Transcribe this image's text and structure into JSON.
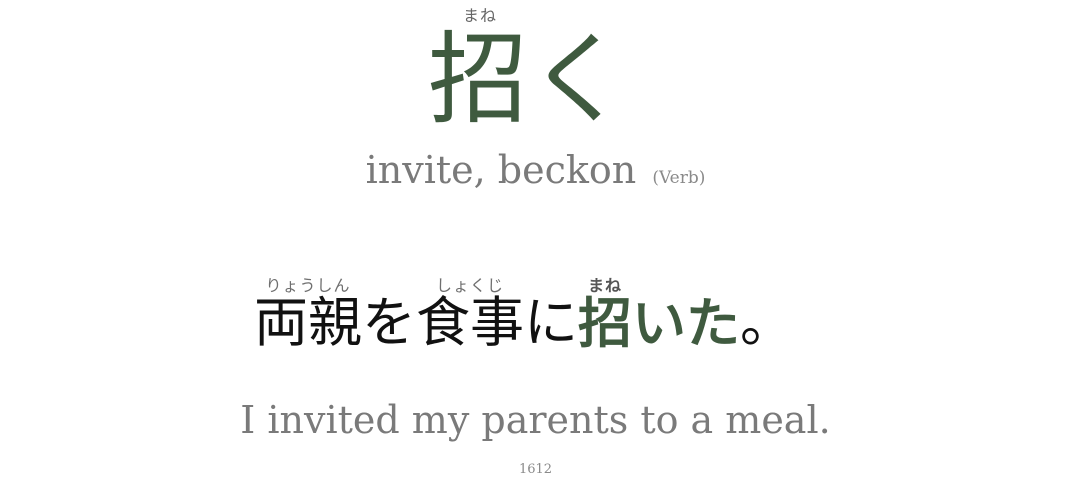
{
  "vocab": {
    "reading": "まね",
    "kanji": "招",
    "okurigana": "く",
    "meaning": "invite, beckon",
    "part_of_speech": "(Verb)"
  },
  "sentence": {
    "segments": [
      {
        "base": "両親",
        "reading": "りょうしん",
        "highlight": false
      },
      {
        "base": "を",
        "reading": "",
        "highlight": false
      },
      {
        "base": "食事",
        "reading": "しょくじ",
        "highlight": false
      },
      {
        "base": "に",
        "reading": "",
        "highlight": false
      },
      {
        "base": "招",
        "reading": "まね",
        "highlight": true
      },
      {
        "base": "いた",
        "reading": "",
        "highlight": true
      },
      {
        "base": "。",
        "reading": "",
        "highlight": false
      }
    ],
    "translation": "I invited my parents to a meal."
  },
  "card": {
    "number": "1612"
  },
  "colors": {
    "accent": "#3f5a3f",
    "muted_text": "#7a7a7a",
    "sentence_text": "#111111",
    "background": "#ffffff"
  }
}
